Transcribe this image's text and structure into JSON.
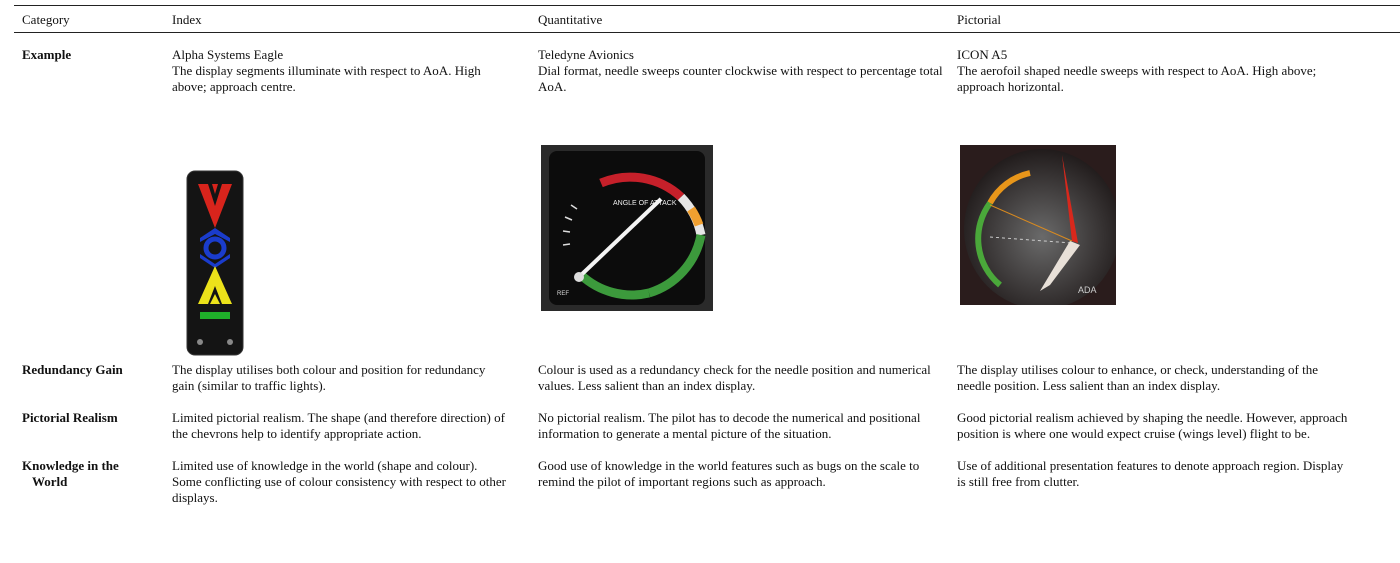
{
  "table": {
    "header": [
      "Category",
      "Index",
      "Quantitative",
      "Pictorial"
    ],
    "rows": [
      {
        "label": "Example",
        "cells": [
          {
            "title": "Alpha Systems Eagle",
            "text": "The display segments illuminate with respect to AoA. High above; approach centre."
          },
          {
            "title": "Teledyne Avionics",
            "text": "Dial format, needle sweeps counter clockwise with respect to percentage total AoA."
          },
          {
            "title": "ICON A5",
            "text": "The aerofoil shaped needle sweeps with respect to AoA. High above; approach horizontal."
          }
        ]
      },
      {
        "label": "Redundancy Gain",
        "cells": [
          "The display utilises both colour and position for redundancy gain (similar to traffic lights).",
          "Colour is used as a redundancy check for the needle position and numerical values. Less salient than an index display.",
          "The display utilises colour to enhance, or check, understanding of the needle position. Less salient than an index display."
        ]
      },
      {
        "label": "Pictorial Realism",
        "cells": [
          "Limited pictorial realism. The shape (and therefore direction) of the chevrons help to identify appropriate action.",
          "No pictorial realism. The pilot has to decode the numerical and positional information to generate a mental picture of the situation.",
          "Good pictorial realism achieved by shaping the needle. However, approach position is where one would expect cruise (wings level) flight to be."
        ]
      },
      {
        "label": "Knowledge in the World",
        "cells": [
          "Limited use of knowledge in the world (shape and colour). Some conflicting use of colour consistency with respect to other displays.",
          "Good use of knowledge in the world features such as bugs on the scale to remind the pilot of important regions such as approach.",
          "Use of additional presentation features to denote approach region. Display is still free from clutter."
        ]
      }
    ]
  }
}
